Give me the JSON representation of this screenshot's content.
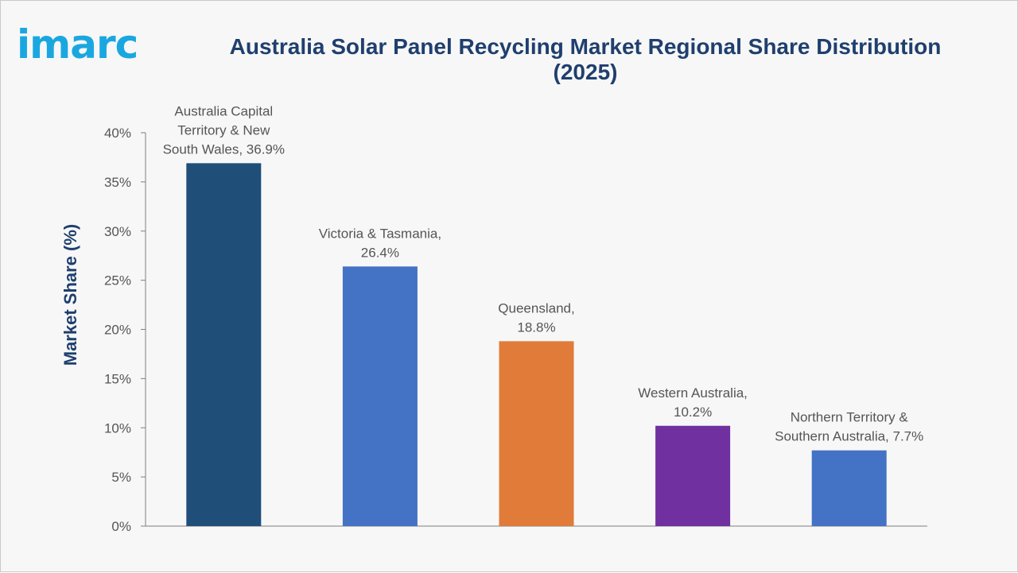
{
  "logo": {
    "text": "imarc"
  },
  "chart_data": {
    "type": "bar",
    "title": "Australia Solar Panel Recycling Market Regional Share Distribution (2025)",
    "xlabel": "",
    "ylabel": "Market Share (%)",
    "ylim": [
      0,
      40
    ],
    "yticks": [
      "0%",
      "5%",
      "10%",
      "15%",
      "20%",
      "25%",
      "30%",
      "35%",
      "40%"
    ],
    "grid": false,
    "categories": [
      "Australia Capital Territory & New South Wales",
      "Victoria & Tasmania",
      "Queensland",
      "Western Australia",
      "Northern Territory & Southern Australia"
    ],
    "values": [
      36.9,
      26.4,
      18.8,
      10.2,
      7.7
    ],
    "colors": [
      "#1f4e79",
      "#4472c4",
      "#e07b39",
      "#7030a0",
      "#4472c4"
    ],
    "data_labels": [
      [
        "Australia Capital",
        "Territory & New",
        "South Wales, 36.9%"
      ],
      [
        "Victoria & Tasmania,",
        "26.4%"
      ],
      [
        "Queensland,",
        "18.8%"
      ],
      [
        "Western Australia,",
        "10.2%"
      ],
      [
        "Northern Territory &",
        "Southern Australia, 7.7%"
      ]
    ]
  }
}
